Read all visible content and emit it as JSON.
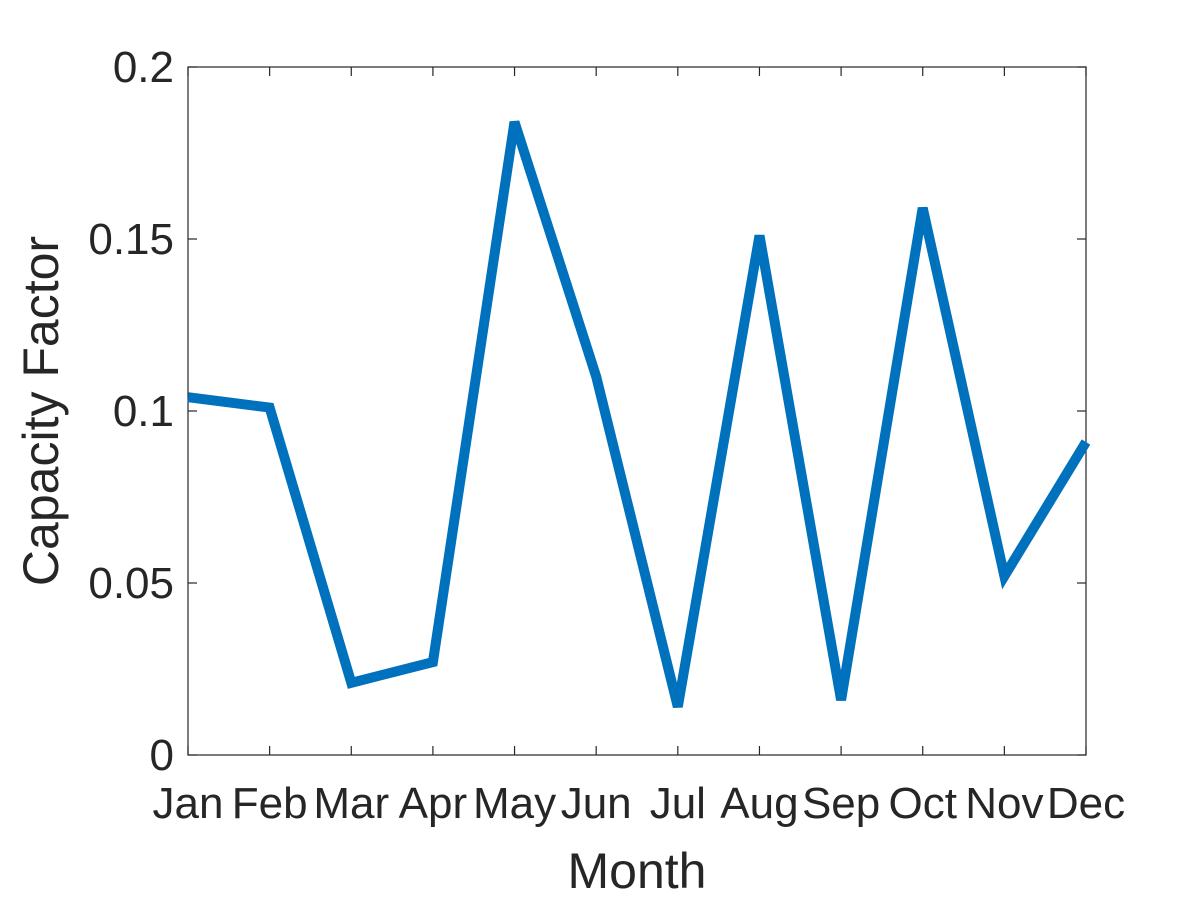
{
  "chart_data": {
    "type": "line",
    "title": "",
    "xlabel": "Month",
    "ylabel": "Capacity Factor",
    "categories": [
      "Jan",
      "Feb",
      "Mar",
      "Apr",
      "May",
      "Jun",
      "Jul",
      "Aug",
      "Sep",
      "Oct",
      "Nov",
      "Dec"
    ],
    "series": [
      {
        "values": [
          0.104,
          0.101,
          0.021,
          0.027,
          0.184,
          0.11,
          0.014,
          0.151,
          0.016,
          0.159,
          0.052,
          0.091
        ],
        "color": "#0072BD"
      }
    ],
    "ylim": [
      0,
      0.2
    ],
    "yticks": [
      0,
      0.05,
      0.1,
      0.15,
      0.2
    ],
    "ytick_labels": [
      "0",
      "0.05",
      "0.1",
      "0.15",
      "0.2"
    ],
    "grid": false,
    "legend": "none",
    "axis_color": "#262626"
  }
}
